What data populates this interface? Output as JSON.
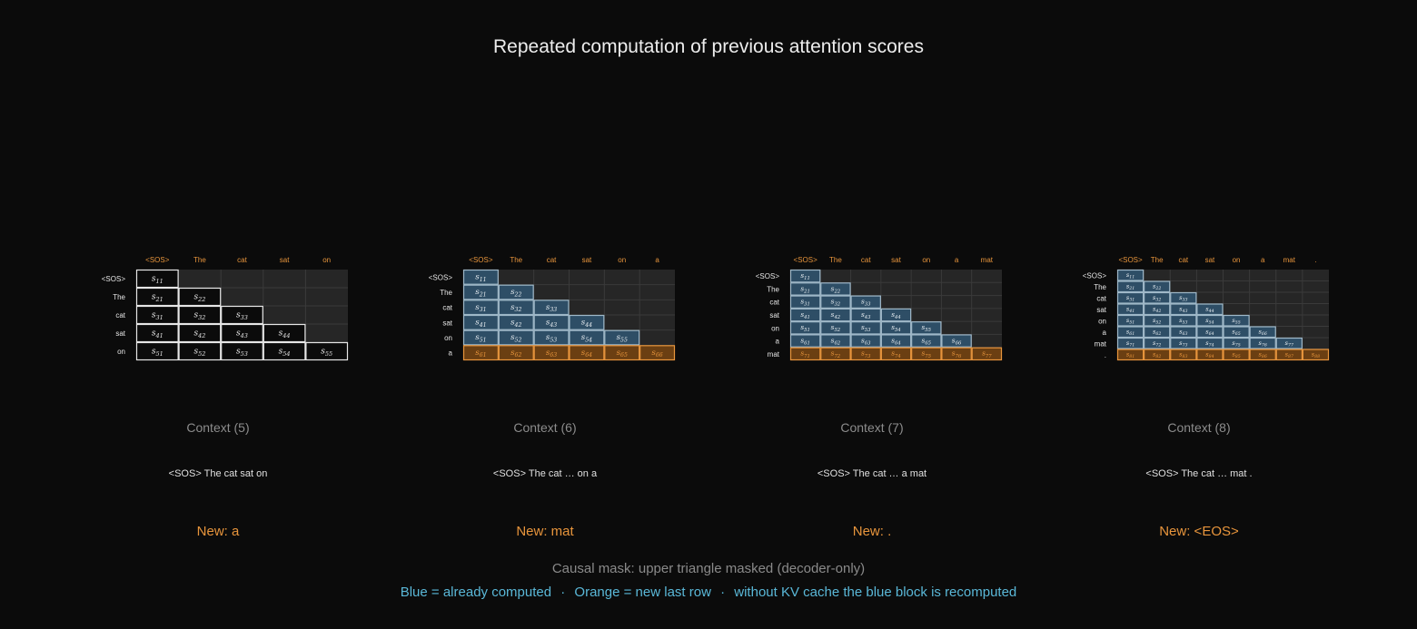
{
  "title": "Repeated computation of previous attention scores",
  "colors": {
    "background": "#0b0b0b",
    "grid_bg": "#262626",
    "grid_line": "#3a3a3a",
    "computed_fill": "#2e4e66",
    "computed_border": "#9fb8c8",
    "new_fill": "#6b3f12",
    "new_border": "#e8953c",
    "token_header": "#e8953c",
    "legend_blue": "#5ab8d8"
  },
  "panels": [
    {
      "context_label": "Context (5)",
      "sequence_label": "<SOS> The cat sat on",
      "new_label": "New: a",
      "columns": [
        "<SOS>",
        "The",
        "cat",
        "sat",
        "on"
      ],
      "rows": [
        "<SOS>",
        "The",
        "cat",
        "sat",
        "on"
      ],
      "style": "plain",
      "cells": [
        [
          "s11"
        ],
        [
          "s21",
          "s22"
        ],
        [
          "s31",
          "s32",
          "s33"
        ],
        [
          "s41",
          "s42",
          "s43",
          "s44"
        ],
        [
          "s51",
          "s52",
          "s53",
          "s54",
          "s55"
        ]
      ]
    },
    {
      "context_label": "Context (6)",
      "sequence_label": "<SOS> The cat … on a",
      "new_label": "New: mat",
      "columns": [
        "<SOS>",
        "The",
        "cat",
        "sat",
        "on",
        "a"
      ],
      "rows": [
        "<SOS>",
        "The",
        "cat",
        "sat",
        "on",
        "a"
      ],
      "style": "kv",
      "cells": [
        [
          "s11"
        ],
        [
          "s21",
          "s22"
        ],
        [
          "s31",
          "s32",
          "s33"
        ],
        [
          "s41",
          "s42",
          "s43",
          "s44"
        ],
        [
          "s51",
          "s52",
          "s53",
          "s54",
          "s55"
        ],
        [
          "s61",
          "s62",
          "s63",
          "s64",
          "s65",
          "s66"
        ]
      ]
    },
    {
      "context_label": "Context (7)",
      "sequence_label": "<SOS> The cat … a mat",
      "new_label": "New: .",
      "columns": [
        "<SOS>",
        "The",
        "cat",
        "sat",
        "on",
        "a",
        "mat"
      ],
      "rows": [
        "<SOS>",
        "The",
        "cat",
        "sat",
        "on",
        "a",
        "mat"
      ],
      "style": "kv",
      "cells": [
        [
          "s11"
        ],
        [
          "s21",
          "s22"
        ],
        [
          "s31",
          "s32",
          "s33"
        ],
        [
          "s41",
          "s42",
          "s43",
          "s44"
        ],
        [
          "s51",
          "s52",
          "s53",
          "s54",
          "s55"
        ],
        [
          "s61",
          "s62",
          "s63",
          "s64",
          "s65",
          "s66"
        ],
        [
          "s71",
          "s72",
          "s73",
          "s74",
          "s75",
          "s76",
          "s77"
        ]
      ]
    },
    {
      "context_label": "Context (8)",
      "sequence_label": "<SOS> The cat … mat .",
      "new_label": "New: <EOS>",
      "columns": [
        "<SOS>",
        "The",
        "cat",
        "sat",
        "on",
        "a",
        "mat",
        "."
      ],
      "rows": [
        "<SOS>",
        "The",
        "cat",
        "sat",
        "on",
        "a",
        "mat",
        "."
      ],
      "style": "kv",
      "cells": [
        [
          "s11"
        ],
        [
          "s21",
          "s22"
        ],
        [
          "s31",
          "s32",
          "s33"
        ],
        [
          "s41",
          "s42",
          "s43",
          "s44"
        ],
        [
          "s51",
          "s52",
          "s53",
          "s54",
          "s55"
        ],
        [
          "s61",
          "s62",
          "s63",
          "s64",
          "s65",
          "s66"
        ],
        [
          "s71",
          "s72",
          "s73",
          "s74",
          "s75",
          "s76",
          "s77"
        ],
        [
          "s81",
          "s82",
          "s83",
          "s84",
          "s85",
          "s86",
          "s87",
          "s88"
        ]
      ]
    }
  ],
  "footer": {
    "mask_note": "Causal mask: upper triangle masked (decoder-only)",
    "legend_blue": "Blue = already computed",
    "legend_orange": "Orange = new last row",
    "legend_kv": "without KV cache the blue block is recomputed",
    "separator": "·"
  }
}
